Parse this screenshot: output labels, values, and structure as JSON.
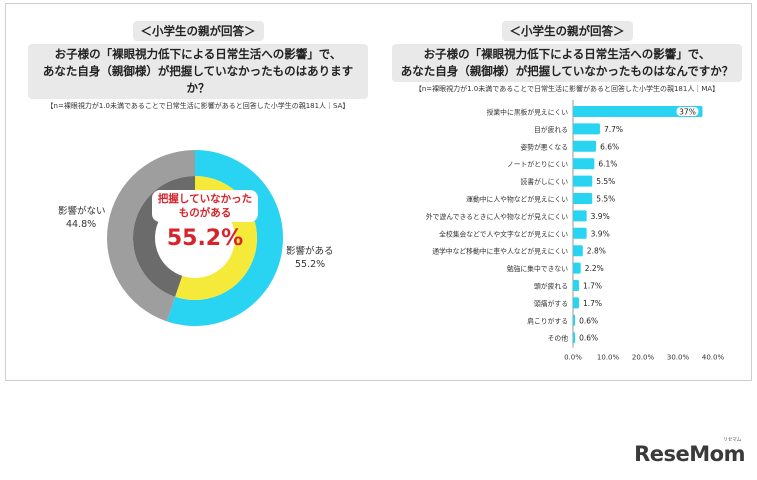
{
  "left_panel": {
    "badge": "＜小学生の親が回答＞",
    "question_line1": "お子様の「裸眼視力低下による日常生活への影響」で、",
    "question_line2": "あなた自身（親御様）が把握していなかったものはありますか？",
    "note": "【n=裸眼視力が1.0未満であることで日常生活に影響があると回答した小学生の親181人｜SA】",
    "callout_text_line1": "把握していなかった",
    "callout_text_line2": "ものがある",
    "callout_value": "55.2%"
  },
  "right_panel": {
    "badge": "＜小学生の親が回答＞",
    "question_line1": "お子様の「裸眼視力低下による日常生活への影響」で、",
    "question_line2": "あなた自身（親御様）が把握していなかったものはなんですか？",
    "note": "【n=裸眼視力が1.0未満であることで日常生活に影響があると回答した小学生の親181人｜MA】"
  },
  "chart_data": [
    {
      "type": "pie",
      "subtype": "donut",
      "slices": [
        {
          "label": "影響がある",
          "value": 55.2,
          "value_label": "55.2%",
          "color": "#29d3f2"
        },
        {
          "label": "影響がない",
          "value": 44.8,
          "value_label": "44.8%",
          "color": "#9e9e9e"
        }
      ],
      "inner_ring": [
        {
          "value": 55.2,
          "color": "#f5e93a"
        },
        {
          "value": 44.8,
          "color": "#6b6b6b"
        }
      ]
    },
    {
      "type": "bar",
      "orientation": "horizontal",
      "categories": [
        "授業中に黒板が見えにくい",
        "目が疲れる",
        "姿勢が悪くなる",
        "ノートがとりにくい",
        "読書がしにくい",
        "運動中に人や物などが見えにくい",
        "外で遊んできるときに人や物などが見えにくい",
        "全校集会などで人や文字などが見えにくい",
        "通学中など移動中に車や人などが見えにくい",
        "勉強に集中できない",
        "頭が疲れる",
        "頭痛がする",
        "肩こりがする",
        "その他"
      ],
      "values": [
        37,
        7.7,
        6.6,
        6.1,
        5.5,
        5.5,
        3.9,
        3.9,
        2.8,
        2.2,
        1.7,
        1.7,
        0.6,
        0.6
      ],
      "value_labels": [
        "37%",
        "7.7%",
        "6.6%",
        "6.1%",
        "5.5%",
        "5.5%",
        "3.9%",
        "3.9%",
        "2.8%",
        "2.2%",
        "1.7%",
        "1.7%",
        "0.6%",
        "0.6%"
      ],
      "xlim": [
        0,
        40
      ],
      "xticks": [
        "0.0%",
        "10.0%",
        "20.0%",
        "30.0%",
        "40.0%"
      ],
      "bar_color": "#29d3f2",
      "grid": false
    }
  ],
  "logo": {
    "text": "ReseMom",
    "ruby": "リセマム"
  }
}
